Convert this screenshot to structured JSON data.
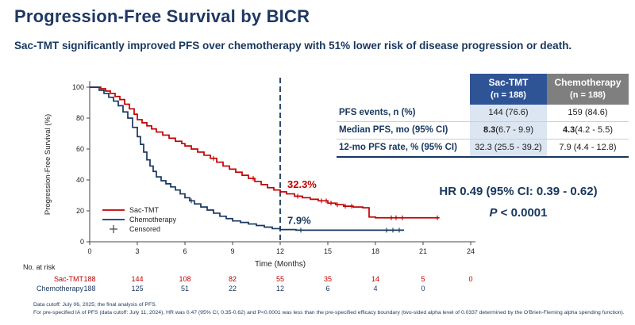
{
  "slide": {
    "title": "Progression-Free Survival by BICR",
    "subtitle": "Sac-TMT significantly improved PFS over chemotherapy with 51% lower risk of disease progression or death."
  },
  "results_table": {
    "columns": [
      {
        "name": "Sac-TMT",
        "n": "(n = 188)",
        "header_bg": "#2F5496",
        "cell_bg": "#DCE6F2"
      },
      {
        "name": "Chemotherapy",
        "n": "(n = 188)",
        "header_bg": "#7F7F7F",
        "cell_bg": "#FFFFFF"
      }
    ],
    "rows": [
      {
        "label": "PFS events, n (%)",
        "values": [
          {
            "bold": "",
            "rest": "144 (76.6)"
          },
          {
            "bold": "",
            "rest": "159 (84.6)"
          }
        ]
      },
      {
        "label": "Median PFS, mo (95% CI)",
        "values": [
          {
            "bold": "8.3",
            "rest": " (6.7 - 9.9)"
          },
          {
            "bold": "4.3",
            "rest": " (4.2 - 5.5)"
          }
        ]
      },
      {
        "label": "12-mo PFS rate, % (95% CI)",
        "values": [
          {
            "bold": "",
            "rest": "32.3 (25.5 - 39.2)"
          },
          {
            "bold": "",
            "rest": "7.9 (4.4 - 12.8)"
          }
        ]
      }
    ]
  },
  "stats": {
    "hr_text": "HR 0.49 (95% CI: 0.39 - 0.62)",
    "p_label": "P",
    "p_value": " < 0.0001"
  },
  "no_at_risk": {
    "label": "No. at risk",
    "rows": [
      {
        "name": "Sac-TMT",
        "color": "#C00000",
        "values": [
          "188",
          "144",
          "108",
          "82",
          "55",
          "35",
          "14",
          "5",
          "0"
        ]
      },
      {
        "name": "Chemotherapy",
        "color": "#17375E",
        "values": [
          "188",
          "125",
          "51",
          "22",
          "12",
          "6",
          "4",
          "0"
        ]
      }
    ]
  },
  "footnotes": [
    "Data cutoff: July 06, 2025; the final analysis of PFS.",
    "For pre-specified IA of PFS (data cutoff: July 11, 2024), HR was 0.47 (95% CI, 0.35-0.62) and P<0.0001 was less than the pre-specified efficacy boundary (two-sided alpha level of 0.0337 determined by the O'Brien-Fleming alpha spending function)."
  ],
  "chart_data": {
    "type": "line",
    "subtype": "kaplan-meier-step",
    "title": "",
    "xlabel": "Time (Months)",
    "ylabel": "Progression-Free Survival (%)",
    "xlim": [
      0,
      24
    ],
    "ylim": [
      0,
      100
    ],
    "xticks": [
      0,
      3,
      6,
      9,
      12,
      15,
      18,
      21,
      24
    ],
    "yticks": [
      0,
      20,
      40,
      60,
      80,
      100
    ],
    "reference_line_x": 12,
    "grid": false,
    "legend": [
      "Sac-TMT",
      "Chemotherapy",
      "Censored"
    ],
    "landmarks": [
      {
        "series": "Sac-TMT",
        "month": 12,
        "value": 32.3
      },
      {
        "series": "Chemotherapy",
        "month": 12,
        "value": 7.9
      }
    ],
    "series": [
      {
        "name": "Sac-TMT",
        "color": "#C00000",
        "steps": [
          [
            0,
            100
          ],
          [
            0.7,
            99
          ],
          [
            1,
            97.5
          ],
          [
            1.3,
            96
          ],
          [
            1.6,
            94
          ],
          [
            1.9,
            92
          ],
          [
            2.2,
            89
          ],
          [
            2.5,
            86
          ],
          [
            2.8,
            82.5
          ],
          [
            3,
            79
          ],
          [
            3.3,
            77
          ],
          [
            3.6,
            75
          ],
          [
            3.9,
            73
          ],
          [
            4.2,
            71
          ],
          [
            4.6,
            69
          ],
          [
            5,
            67
          ],
          [
            5.4,
            65
          ],
          [
            5.8,
            63.5
          ],
          [
            6,
            62
          ],
          [
            6.4,
            60
          ],
          [
            6.8,
            58
          ],
          [
            7.2,
            56
          ],
          [
            7.6,
            54
          ],
          [
            8,
            51.5
          ],
          [
            8.4,
            49
          ],
          [
            8.8,
            47
          ],
          [
            9.2,
            45
          ],
          [
            9.6,
            43
          ],
          [
            10,
            41
          ],
          [
            10.4,
            39
          ],
          [
            10.8,
            37
          ],
          [
            11.2,
            35
          ],
          [
            11.6,
            33.5
          ],
          [
            12,
            32.3
          ],
          [
            12.4,
            31
          ],
          [
            12.9,
            29.5
          ],
          [
            13.4,
            28.5
          ],
          [
            13.9,
            27.5
          ],
          [
            14.4,
            26.5
          ],
          [
            15,
            25
          ],
          [
            15.5,
            24
          ],
          [
            16,
            23
          ],
          [
            16.6,
            22.5
          ],
          [
            17.2,
            22
          ],
          [
            17.6,
            16
          ],
          [
            18,
            15.5
          ],
          [
            22,
            15.5
          ]
        ],
        "censor_times": [
          7.8,
          10.3,
          13.1,
          14.6,
          14.9,
          15.2,
          15.6,
          16.1,
          16.5,
          19.0,
          19.3,
          19.7,
          21.9
        ]
      },
      {
        "name": "Chemotherapy",
        "color": "#17375E",
        "steps": [
          [
            0,
            100
          ],
          [
            0.6,
            98
          ],
          [
            0.9,
            96
          ],
          [
            1.2,
            93.5
          ],
          [
            1.5,
            91
          ],
          [
            1.8,
            88
          ],
          [
            2.1,
            84
          ],
          [
            2.4,
            80
          ],
          [
            2.7,
            74
          ],
          [
            3,
            68
          ],
          [
            3.2,
            63
          ],
          [
            3.4,
            58
          ],
          [
            3.6,
            53
          ],
          [
            3.8,
            49
          ],
          [
            4,
            45.5
          ],
          [
            4.2,
            42
          ],
          [
            4.5,
            39.5
          ],
          [
            4.8,
            37.5
          ],
          [
            5.1,
            35.5
          ],
          [
            5.4,
            33.5
          ],
          [
            5.7,
            31
          ],
          [
            6,
            28.5
          ],
          [
            6.3,
            26.5
          ],
          [
            6.6,
            24.5
          ],
          [
            7,
            22.5
          ],
          [
            7.4,
            20.5
          ],
          [
            7.8,
            18.5
          ],
          [
            8.2,
            16.5
          ],
          [
            8.6,
            15
          ],
          [
            9,
            13.5
          ],
          [
            9.5,
            12.5
          ],
          [
            10,
            11.5
          ],
          [
            10.5,
            10.5
          ],
          [
            11,
            9.5
          ],
          [
            11.5,
            8.5
          ],
          [
            12,
            7.9
          ],
          [
            13,
            7.5
          ],
          [
            19.8,
            7.5
          ]
        ],
        "censor_times": [
          6.4,
          13.3,
          18.7,
          19.1,
          19.5
        ]
      }
    ],
    "annotations": [
      {
        "text": "32.3%",
        "x": 12.25,
        "y": 35,
        "color": "#C00000"
      },
      {
        "text": "7.9%",
        "x": 12.25,
        "y": 11.5,
        "color": "#17375E"
      }
    ]
  }
}
